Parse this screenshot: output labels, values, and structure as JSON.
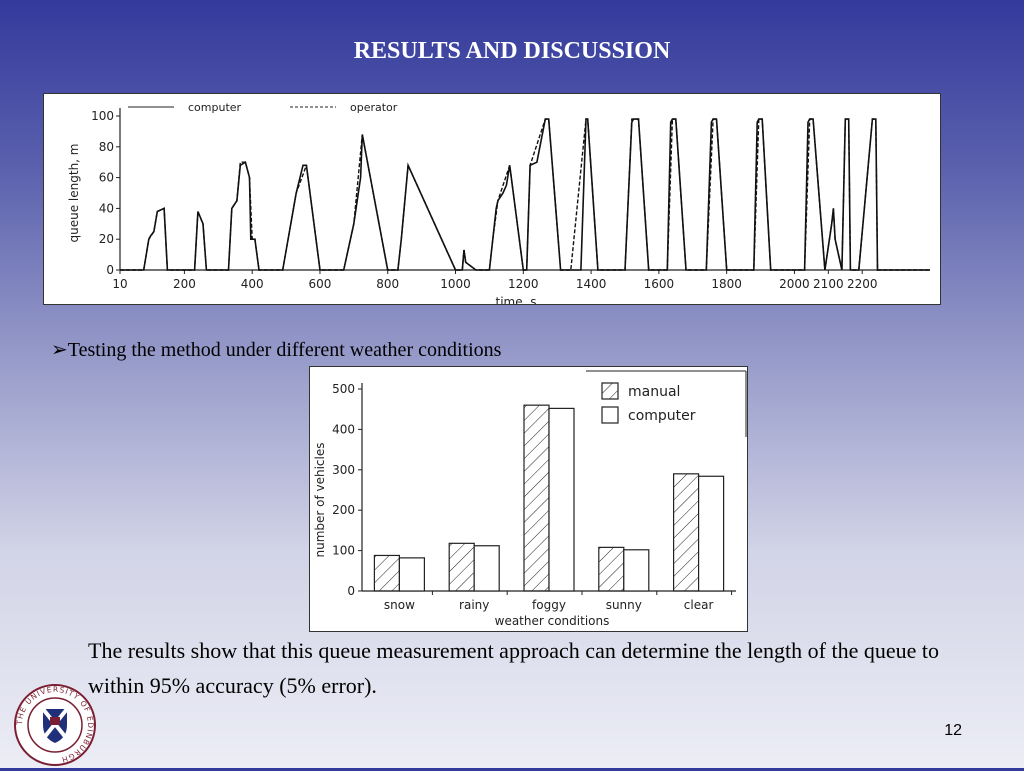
{
  "slide": {
    "title": "RESULTS AND DISCUSSION",
    "bullet_marker": "➢",
    "bullet_text": "Testing the method under different weather conditions",
    "conclusion": "The results show that this queue measurement approach can determine the length of the queue to within 95% accuracy (5% error).",
    "page_number": "12"
  },
  "logo": {
    "ring_text": "THE UNIVERSITY OF EDINBURGH"
  },
  "chart_data": [
    {
      "type": "line",
      "title": "",
      "xlabel": "time, s",
      "ylabel": "queue length, m",
      "xlim": [
        10,
        2400
      ],
      "ylim": [
        0,
        100
      ],
      "x_ticks": [
        "10",
        "200",
        "400",
        "600",
        "800",
        "1000",
        "1200",
        "1400",
        "1600",
        "1800",
        "2000",
        "2100",
        "2200"
      ],
      "y_ticks": [
        "0",
        "20",
        "40",
        "60",
        "80",
        "100"
      ],
      "legend_position": "top",
      "series": [
        {
          "name": "computer",
          "style": "solid",
          "x": [
            10,
            80,
            95,
            100,
            110,
            120,
            140,
            150,
            230,
            240,
            255,
            265,
            330,
            340,
            355,
            365,
            380,
            392,
            396,
            408,
            420,
            490,
            530,
            550,
            560,
            600,
            670,
            700,
            720,
            725,
            800,
            830,
            840,
            860,
            1000,
            1020,
            1025,
            1030,
            1060,
            1100,
            1110,
            1120,
            1125,
            1140,
            1150,
            1160,
            1200,
            1210,
            1220,
            1240,
            1265,
            1272,
            1275,
            1310,
            1340,
            1370,
            1385,
            1390,
            1420,
            1450,
            1500,
            1520,
            1525,
            1540,
            1570,
            1625,
            1635,
            1640,
            1650,
            1680,
            1740,
            1755,
            1760,
            1770,
            1800,
            1880,
            1890,
            1895,
            1905,
            1930,
            2030,
            2040,
            2045,
            2055,
            2090,
            2110,
            2115,
            2120,
            2140,
            2150,
            2160,
            2165,
            2180,
            2190,
            2230,
            2240,
            2245,
            2260,
            2400
          ],
          "y": [
            0,
            0,
            20,
            22,
            25,
            38,
            40,
            0,
            0,
            38,
            30,
            0,
            0,
            40,
            45,
            68,
            70,
            60,
            20,
            20,
            0,
            0,
            50,
            68,
            68,
            0,
            0,
            30,
            60,
            88,
            0,
            0,
            20,
            68,
            0,
            0,
            13,
            5,
            0,
            0,
            20,
            40,
            45,
            50,
            55,
            68,
            0,
            0,
            68,
            70,
            98,
            98,
            98,
            0,
            0,
            0,
            98,
            98,
            0,
            0,
            0,
            96,
            98,
            98,
            0,
            0,
            96,
            98,
            98,
            0,
            0,
            96,
            98,
            98,
            0,
            0,
            96,
            98,
            98,
            0,
            0,
            96,
            98,
            98,
            0,
            30,
            40,
            20,
            0,
            98,
            98,
            0,
            0,
            0,
            98,
            98,
            0,
            0,
            0
          ]
        },
        {
          "name": "operator",
          "style": "dashed",
          "x": [
            10,
            80,
            95,
            110,
            120,
            140,
            150,
            230,
            240,
            255,
            265,
            330,
            340,
            355,
            365,
            380,
            392,
            400,
            408,
            420,
            490,
            530,
            560,
            600,
            670,
            700,
            725,
            800,
            830,
            840,
            860,
            1000,
            1020,
            1025,
            1030,
            1060,
            1100,
            1110,
            1125,
            1160,
            1200,
            1210,
            1220,
            1265,
            1275,
            1310,
            1340,
            1385,
            1390,
            1420,
            1500,
            1520,
            1540,
            1570,
            1625,
            1640,
            1650,
            1680,
            1740,
            1760,
            1770,
            1800,
            1880,
            1895,
            1905,
            1930,
            2030,
            2045,
            2055,
            2090,
            2110,
            2115,
            2120,
            2140,
            2150,
            2160,
            2165,
            2180,
            2190,
            2230,
            2240,
            2245,
            2260,
            2400
          ],
          "y": [
            0,
            0,
            20,
            25,
            38,
            40,
            0,
            0,
            38,
            30,
            0,
            0,
            40,
            45,
            70,
            70,
            60,
            20,
            20,
            0,
            0,
            50,
            68,
            0,
            0,
            30,
            88,
            0,
            0,
            20,
            68,
            0,
            0,
            13,
            5,
            0,
            0,
            20,
            45,
            68,
            0,
            0,
            68,
            98,
            98,
            0,
            0,
            98,
            98,
            0,
            0,
            98,
            98,
            0,
            0,
            98,
            98,
            0,
            0,
            98,
            98,
            0,
            0,
            98,
            98,
            0,
            0,
            98,
            98,
            0,
            30,
            40,
            20,
            0,
            98,
            98,
            0,
            0,
            0,
            98,
            98,
            0,
            0,
            0
          ]
        }
      ]
    },
    {
      "type": "bar",
      "title": "",
      "xlabel": "weather conditions",
      "ylabel": "number of vehicles",
      "categories": [
        "snow",
        "rainy",
        "foggy",
        "sunny",
        "clear"
      ],
      "ylim": [
        0,
        500
      ],
      "y_ticks": [
        "0",
        "100",
        "200",
        "300",
        "400",
        "500"
      ],
      "legend_position": "top-right",
      "series": [
        {
          "name": "manual",
          "pattern": "hatched",
          "values": [
            88,
            118,
            460,
            108,
            290
          ]
        },
        {
          "name": "computer",
          "pattern": "empty",
          "values": [
            82,
            112,
            452,
            102,
            284
          ]
        }
      ]
    }
  ]
}
